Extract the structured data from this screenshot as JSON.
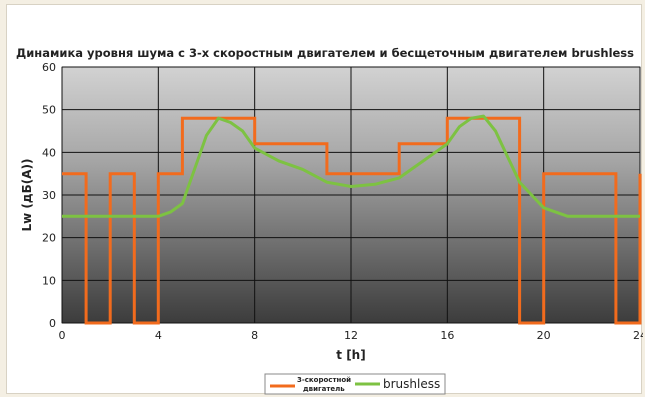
{
  "chart_data": {
    "type": "line",
    "title": "Динамика уровня шума с 3-х скоростным двигателем и бесщеточным двигателем brushless",
    "xlabel": "t [h]",
    "ylabel": "Lw (дБ(A))",
    "xlim": [
      0,
      24
    ],
    "ylim": [
      0,
      60
    ],
    "xticks": [
      "0",
      "4",
      "8",
      "12",
      "16",
      "20",
      "24"
    ],
    "yticks": [
      "0",
      "10",
      "20",
      "30",
      "40",
      "50",
      "60"
    ],
    "grid": true,
    "legend_position": "bottom",
    "series": [
      {
        "name": "3-скоростной двигатель",
        "legend_lines": [
          "3-скоростной",
          "двигатель"
        ],
        "color": "#f26b1d",
        "step": true,
        "x": [
          0,
          1,
          1,
          2,
          2,
          3,
          3,
          4,
          4,
          5,
          5,
          8,
          8,
          11,
          11,
          14,
          14,
          16,
          16,
          19,
          19,
          20,
          20,
          23,
          23,
          24,
          24
        ],
        "y": [
          35,
          35,
          0,
          0,
          35,
          35,
          0,
          0,
          35,
          35,
          48,
          48,
          42,
          42,
          35,
          35,
          42,
          42,
          48,
          48,
          0,
          0,
          35,
          35,
          0,
          0,
          35
        ]
      },
      {
        "name": "brushless",
        "color": "#7dc242",
        "step": false,
        "x": [
          0,
          4,
          4.5,
          5,
          5.5,
          6,
          6.5,
          7,
          7.5,
          8,
          9,
          10,
          11,
          12,
          13,
          14,
          15,
          16,
          16.5,
          17,
          17.5,
          18,
          18.5,
          19,
          19.5,
          20,
          21,
          24
        ],
        "y": [
          25,
          25,
          26,
          28,
          36,
          44,
          48,
          47,
          45,
          41,
          38,
          36,
          33,
          32,
          32.5,
          34,
          38,
          42,
          46,
          48,
          48.5,
          45,
          39,
          33,
          30,
          27,
          25,
          25
        ]
      }
    ]
  }
}
